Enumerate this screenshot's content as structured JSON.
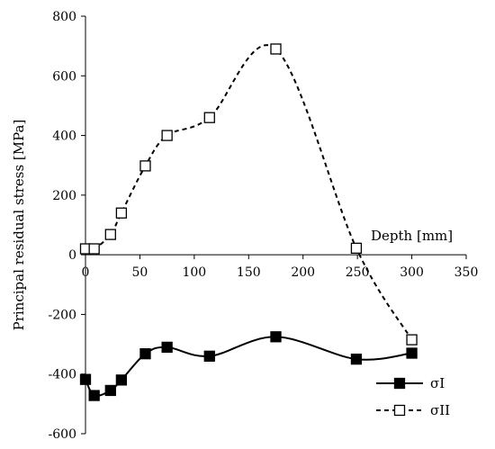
{
  "chart_data": {
    "type": "line",
    "xlabel": "Depth [mm]",
    "ylabel": "Principal residual stress [MPa]",
    "xlim": [
      0,
      350
    ],
    "ylim": [
      -600,
      800
    ],
    "xticks": [
      0,
      50,
      100,
      150,
      200,
      250,
      300,
      350
    ],
    "yticks": [
      -600,
      -400,
      -200,
      0,
      200,
      400,
      600,
      800
    ],
    "grid": false,
    "legend_position": "bottom-right",
    "series": [
      {
        "name": "σI",
        "marker": "filled-square",
        "line": "solid",
        "x": [
          0,
          8,
          23,
          33,
          55,
          75,
          114,
          175,
          249,
          300
        ],
        "y": [
          -418,
          -472,
          -455,
          -420,
          -332,
          -310,
          -340,
          -275,
          -350,
          -330
        ]
      },
      {
        "name": "σII",
        "marker": "open-square",
        "line": "dashed",
        "x": [
          0,
          8,
          23,
          33,
          55,
          75,
          114,
          175,
          249,
          300
        ],
        "y": [
          20,
          20,
          68,
          140,
          298,
          400,
          460,
          690,
          22,
          -285
        ]
      }
    ]
  }
}
